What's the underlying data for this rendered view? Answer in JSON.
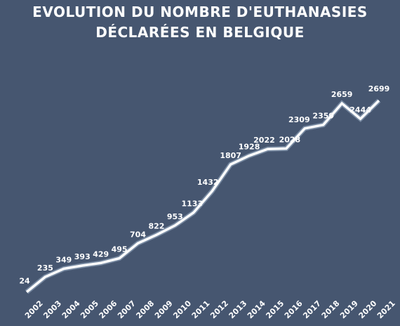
{
  "chart_data": {
    "type": "line",
    "title_lines": [
      "EVOLUTION DU NOMBRE D'EUTHANASIES",
      "DÉCLARÉES EN BELGIQUE"
    ],
    "xlabel": "",
    "ylabel": "",
    "categories": [
      "2002",
      "2003",
      "2004",
      "2005",
      "2006",
      "2007",
      "2008",
      "2009",
      "2010",
      "2011",
      "2012",
      "2013",
      "2014",
      "2015",
      "2016",
      "2017",
      "2018",
      "2019",
      "2020",
      "2021"
    ],
    "values": [
      24,
      235,
      349,
      393,
      429,
      495,
      704,
      822,
      953,
      1133,
      1432,
      1807,
      1928,
      2022,
      2028,
      2309,
      2359,
      2659,
      2444,
      2699
    ],
    "value_labels": [
      "24",
      "235",
      "349",
      "393",
      "429",
      "495",
      "704",
      "822",
      "953",
      "1133",
      "1432",
      "1807",
      "1928",
      "2022",
      "2028",
      "2309",
      "2359",
      "2659",
      "2444",
      "2699"
    ],
    "ylim": [
      0,
      2700
    ],
    "grid": false,
    "line_color": "#ffffff",
    "background_color": "#465670"
  }
}
